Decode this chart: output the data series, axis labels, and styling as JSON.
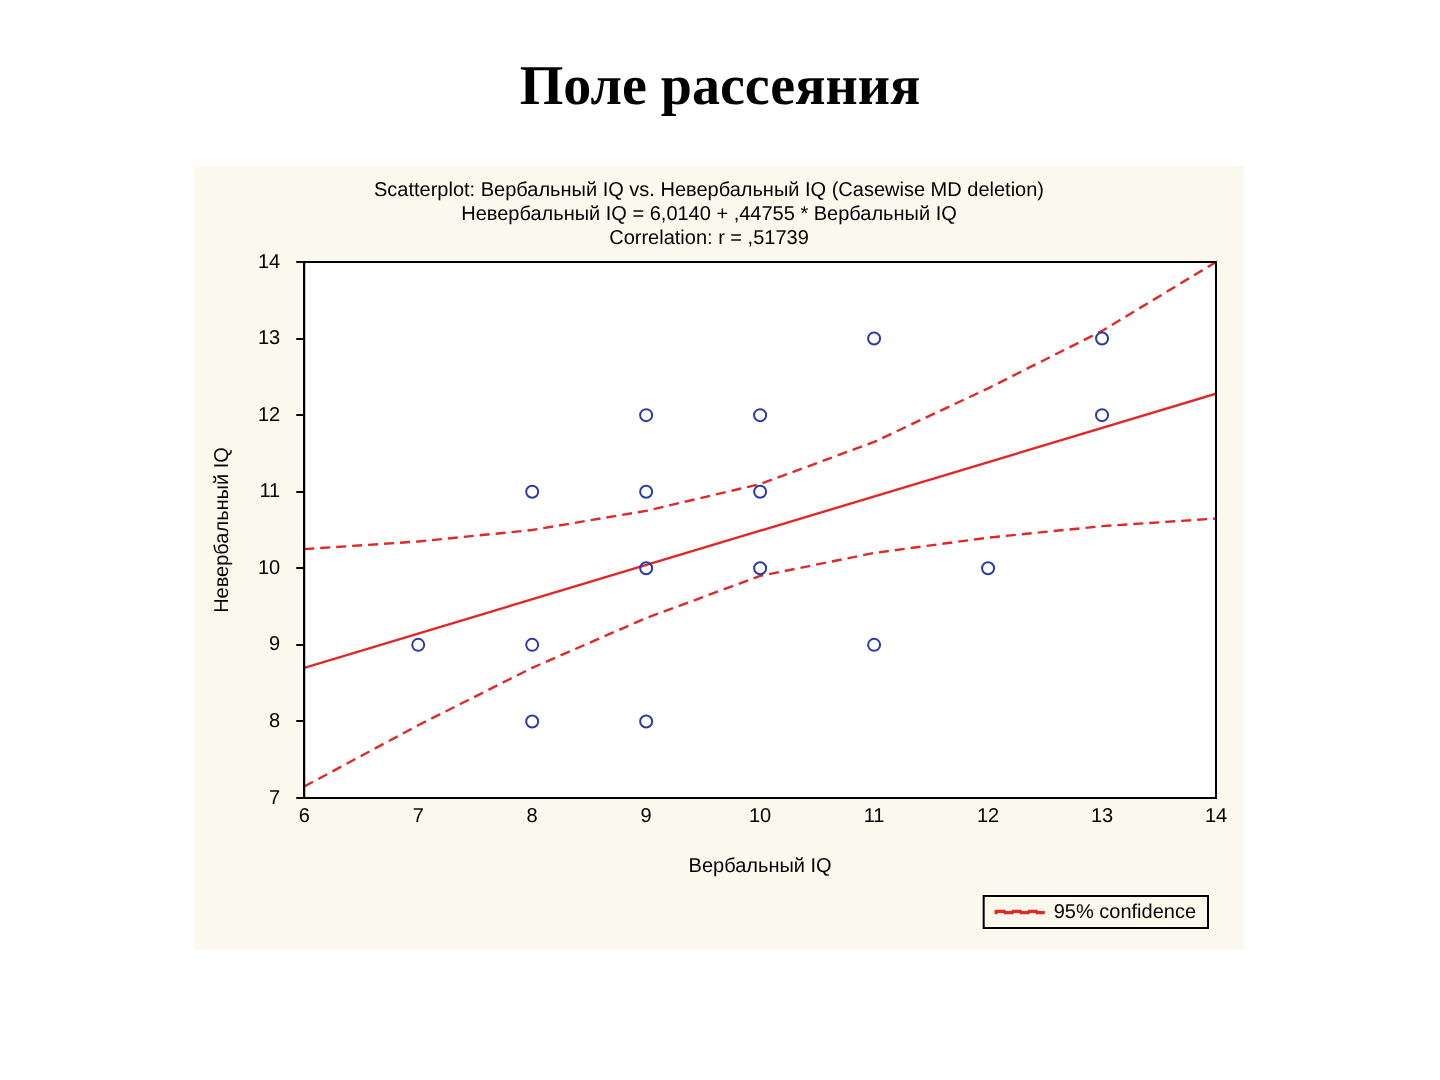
{
  "chart_data": {
    "type": "scatter",
    "title": "Поле рассеяния",
    "subtitle": "Scatterplot: Вербальный IQ vs. Невербальный IQ (Casewise MD deletion)",
    "annotations": [
      "Невербальный IQ = 6,0140 + ,44755 * Вербальный IQ",
      "Correlation: r = ,51739"
    ],
    "xlabel": "Вербальный IQ",
    "ylabel": "Невербальный IQ",
    "xlim": [
      6,
      14
    ],
    "xticks": [
      6,
      7,
      8,
      9,
      10,
      11,
      12,
      13,
      14
    ],
    "ylim": [
      7,
      14
    ],
    "yticks": [
      7,
      8,
      9,
      10,
      11,
      12,
      13,
      14
    ],
    "grid": false,
    "legend": "bottom right",
    "series": [
      {
        "marker": "circle",
        "color": "#2a3aa8",
        "x": [
          7,
          8,
          8,
          8,
          9,
          9,
          9,
          9,
          10,
          10,
          10,
          11,
          11,
          12,
          13,
          13
        ],
        "values": [
          9,
          11,
          9,
          8,
          12,
          11,
          10,
          8,
          12,
          11,
          10,
          13,
          9,
          10,
          13,
          12
        ]
      },
      {
        "type": "line",
        "marker": "none",
        "line_style": "solid",
        "color": "#e02828",
        "x": [
          6,
          14
        ],
        "values": [
          8.7,
          12.28
        ]
      },
      {
        "type": "line",
        "marker": "none",
        "line_style": "dashed",
        "name": "95% confidence",
        "color": "#e02828",
        "x": [
          6,
          7,
          8,
          9,
          10,
          11,
          12,
          13,
          14
        ],
        "values": [
          10.25,
          10.35,
          10.5,
          10.75,
          11.1,
          11.65,
          12.35,
          13.1,
          14.0
        ]
      },
      {
        "type": "line",
        "marker": "none",
        "line_style": "dashed",
        "color": "#e02828",
        "x": [
          6,
          7,
          8,
          9,
          10,
          11,
          12,
          13,
          14
        ],
        "values": [
          7.15,
          7.95,
          8.7,
          9.35,
          9.9,
          10.2,
          10.4,
          10.55,
          10.65
        ]
      }
    ]
  }
}
